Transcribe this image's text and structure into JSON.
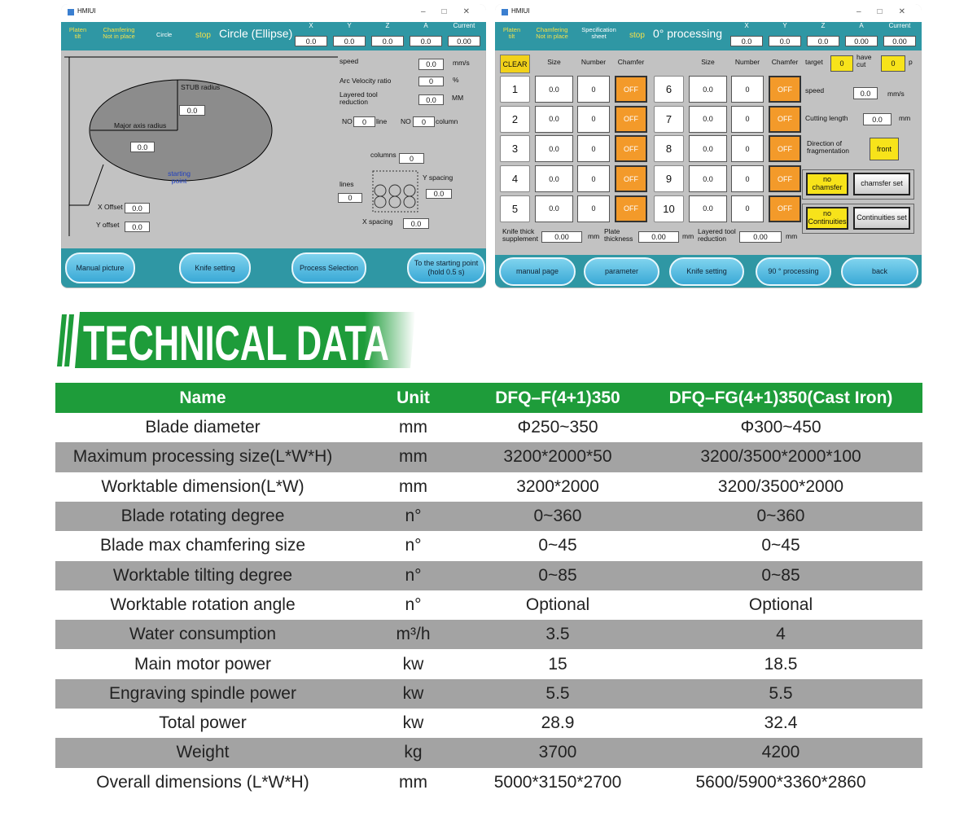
{
  "screens": [
    {
      "window_title": "HMIUI",
      "status": [
        "Platen tilt",
        "Chamfering Not in place",
        "Circle",
        "stop"
      ],
      "mode": "Circle (Ellipse)",
      "axes": {
        "labels": [
          "X",
          "Y",
          "Z",
          "A",
          "Current"
        ],
        "values": [
          "0.0",
          "0.0",
          "0.0",
          "0.0",
          "0.00"
        ]
      },
      "fields": [
        {
          "label": "speed",
          "value": "0.0",
          "unit": "mm/s"
        },
        {
          "label": "Arc Velocity ratio",
          "value": "0",
          "unit": "%"
        },
        {
          "label": "Layered tool reduction",
          "value": "0.0",
          "unit": "MM"
        },
        {
          "label": "columns",
          "value": "0"
        },
        {
          "label": "lines",
          "value": "0"
        },
        {
          "label": "Y spacing",
          "value": "0.0"
        },
        {
          "label": "X spacing",
          "value": "0.0"
        },
        {
          "label": "STUB radius",
          "value": "0.0"
        },
        {
          "label": "Major axis radius",
          "value": "0.0"
        },
        {
          "label": "X Offset",
          "value": "0.0"
        },
        {
          "label": "Y offset",
          "value": "0.0"
        },
        {
          "label": "NO",
          "value": "0",
          "unit": "line"
        },
        {
          "label": "NO",
          "value": "0",
          "unit": "column"
        }
      ],
      "note": "starting point",
      "buttons": [
        "Manual picture",
        "Knife setting",
        "Process Selection",
        "To the starting point (hold 0.5 s)"
      ]
    },
    {
      "window_title": "HMIUI",
      "status": [
        "Platen tilt",
        "Chamfering Not in place",
        "Specification sheet",
        "stop"
      ],
      "mode": "0° processing",
      "axes": {
        "labels": [
          "X",
          "Y",
          "Z",
          "A",
          "Current"
        ],
        "values": [
          "0.0",
          "0.0",
          "0.0",
          "0.00",
          "0.00"
        ]
      },
      "clear": "CLEAR",
      "column_headers": [
        [
          "Size",
          "Number",
          "Chamfer"
        ],
        [
          "Size",
          "Number",
          "Chamfer"
        ]
      ],
      "rows": [
        {
          "no": "1",
          "size": "0.0",
          "number": "0",
          "chamfer": "OFF"
        },
        {
          "no": "2",
          "size": "0.0",
          "number": "0",
          "chamfer": "OFF"
        },
        {
          "no": "3",
          "size": "0.0",
          "number": "0",
          "chamfer": "OFF"
        },
        {
          "no": "4",
          "size": "0.0",
          "number": "0",
          "chamfer": "OFF"
        },
        {
          "no": "5",
          "size": "0.0",
          "number": "0",
          "chamfer": "OFF"
        },
        {
          "no": "6",
          "size": "0.0",
          "number": "0",
          "chamfer": "OFF"
        },
        {
          "no": "7",
          "size": "0.0",
          "number": "0",
          "chamfer": "OFF"
        },
        {
          "no": "8",
          "size": "0.0",
          "number": "0",
          "chamfer": "OFF"
        },
        {
          "no": "9",
          "size": "0.0",
          "number": "0",
          "chamfer": "OFF"
        },
        {
          "no": "10",
          "size": "0.0",
          "number": "0",
          "chamfer": "OFF"
        }
      ],
      "fields": [
        {
          "label": "target",
          "value": "0"
        },
        {
          "label": "have cut",
          "value": "0",
          "unit": "p"
        },
        {
          "label": "speed",
          "value": "0.0",
          "unit": "mm/s"
        },
        {
          "label": "Cutting length",
          "value": "0.0",
          "unit": "mm"
        },
        {
          "label": "Knife thick supplement",
          "value": "0.00",
          "unit": "mm"
        },
        {
          "label": "Plate thickness",
          "value": "0.00",
          "unit": "mm"
        },
        {
          "label": "Layered tool reduction",
          "value": "0.00",
          "unit": "mm"
        }
      ],
      "direction": {
        "label": "Direction of fragmentation",
        "value": "front"
      },
      "toggles": [
        "no chamsfer",
        "chamsfer set",
        "no Continuities",
        "Continuities set"
      ],
      "buttons": [
        "manual page",
        "parameter",
        "Knife setting",
        "90 ° processing",
        "back"
      ]
    }
  ],
  "heading": "TECHNICAL DATA",
  "table": {
    "columns": [
      "Name",
      "Unit",
      "DFQ–F(4+1)350",
      "DFQ–FG(4+1)350(Cast Iron)"
    ],
    "rows": [
      [
        "Blade diameter",
        "mm",
        "Φ250~350",
        "Φ300~450"
      ],
      [
        "Maximum processing size(L*W*H)",
        "mm",
        "3200*2000*50",
        "3200/3500*2000*100"
      ],
      [
        "Worktable dimension(L*W)",
        "mm",
        "3200*2000",
        "3200/3500*2000"
      ],
      [
        "Blade rotating degree",
        "n°",
        "0~360",
        "0~360"
      ],
      [
        "Blade max chamfering size",
        "n°",
        "0~45",
        "0~45"
      ],
      [
        "Worktable tilting degree",
        "n°",
        "0~85",
        "0~85"
      ],
      [
        "Worktable rotation angle",
        "n°",
        "Optional",
        "Optional"
      ],
      [
        "Water consumption",
        "m³/h",
        "3.5",
        "4"
      ],
      [
        "Main motor power",
        "kw",
        "15",
        "18.5"
      ],
      [
        "Engraving spindle power",
        "kw",
        "5.5",
        "5.5"
      ],
      [
        "Total power",
        "kw",
        "28.9",
        "32.4"
      ],
      [
        "Weight",
        "kg",
        "3700",
        "4200"
      ],
      [
        "Overall dimensions (L*W*H)",
        "mm",
        "5000*3150*2700",
        "5600/5900*3360*2860"
      ]
    ]
  }
}
